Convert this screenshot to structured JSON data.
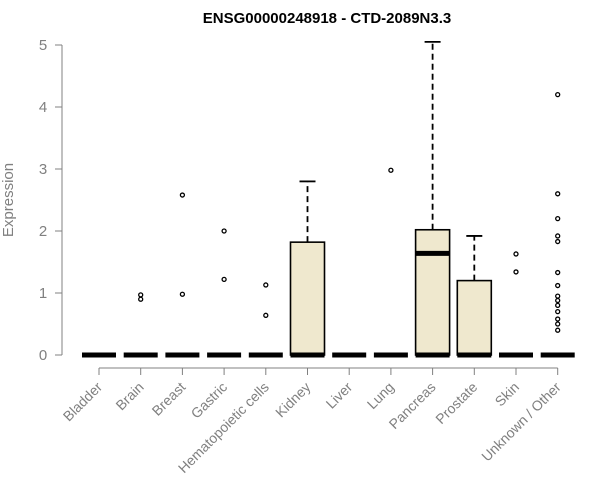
{
  "chart_data": {
    "type": "boxplot",
    "title": "ENSG00000248918 - CTD-2089N3.3",
    "ylabel": "Expression",
    "xlabel": "",
    "ylim": [
      0,
      5
    ],
    "yticks": [
      0,
      1,
      2,
      3,
      4,
      5
    ],
    "categories": [
      "Bladder",
      "Brain",
      "Breast",
      "Gastric",
      "Hematopoietic cells",
      "Kidney",
      "Liver",
      "Lung",
      "Pancreas",
      "Prostate",
      "Skin",
      "Unknown / Other"
    ],
    "box_fill": "#efe8ce",
    "boxes": [
      {
        "category": "Bladder",
        "q1": 0,
        "median": 0,
        "q3": 0,
        "whisker_low": 0,
        "whisker_high": 0,
        "outliers": []
      },
      {
        "category": "Brain",
        "q1": 0,
        "median": 0,
        "q3": 0,
        "whisker_low": 0,
        "whisker_high": 0,
        "outliers": [
          0.9,
          0.97
        ]
      },
      {
        "category": "Breast",
        "q1": 0,
        "median": 0,
        "q3": 0,
        "whisker_low": 0,
        "whisker_high": 0,
        "outliers": [
          0.98,
          2.58
        ]
      },
      {
        "category": "Gastric",
        "q1": 0,
        "median": 0,
        "q3": 0,
        "whisker_low": 0,
        "whisker_high": 0,
        "outliers": [
          1.22,
          2.0
        ]
      },
      {
        "category": "Hematopoietic cells",
        "q1": 0,
        "median": 0,
        "q3": 0,
        "whisker_low": 0,
        "whisker_high": 0,
        "outliers": [
          0.64,
          1.13
        ]
      },
      {
        "category": "Kidney",
        "q1": 0,
        "median": 0,
        "q3": 1.82,
        "whisker_low": 0,
        "whisker_high": 2.8,
        "outliers": []
      },
      {
        "category": "Liver",
        "q1": 0,
        "median": 0,
        "q3": 0,
        "whisker_low": 0,
        "whisker_high": 0,
        "outliers": []
      },
      {
        "category": "Lung",
        "q1": 0,
        "median": 0,
        "q3": 0,
        "whisker_low": 0,
        "whisker_high": 0,
        "outliers": [
          2.98
        ]
      },
      {
        "category": "Pancreas",
        "q1": 0,
        "median": 1.64,
        "q3": 2.02,
        "whisker_low": 0,
        "whisker_high": 5.05,
        "outliers": []
      },
      {
        "category": "Prostate",
        "q1": 0,
        "median": 0,
        "q3": 1.2,
        "whisker_low": 0,
        "whisker_high": 1.92,
        "outliers": []
      },
      {
        "category": "Skin",
        "q1": 0,
        "median": 0,
        "q3": 0,
        "whisker_low": 0,
        "whisker_high": 0,
        "outliers": [
          1.34,
          1.63
        ]
      },
      {
        "category": "Unknown / Other",
        "q1": 0,
        "median": 0,
        "q3": 0,
        "whisker_low": 0,
        "whisker_high": 0,
        "outliers": [
          0.4,
          0.5,
          0.58,
          0.7,
          0.8,
          0.88,
          0.95,
          1.12,
          1.33,
          1.83,
          1.92,
          2.2,
          2.6,
          4.2
        ]
      }
    ]
  }
}
